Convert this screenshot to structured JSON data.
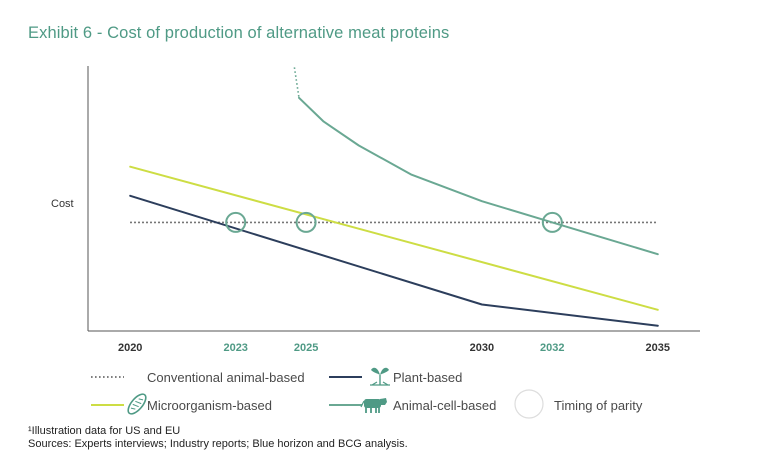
{
  "title": "Exhibit 6 - Cost of production of alternative meat proteins",
  "chart_data": {
    "type": "line",
    "ylabel": "Cost",
    "xlim": [
      2018.8,
      2036.2
    ],
    "ylim": [
      0,
      100
    ],
    "x_ticks": [
      {
        "label": "2020",
        "x": 2020,
        "color": "#333333"
      },
      {
        "label": "2023",
        "x": 2023,
        "color": "#4f9a85"
      },
      {
        "label": "2025",
        "x": 2025,
        "color": "#4f9a85"
      },
      {
        "label": "2030",
        "x": 2030,
        "color": "#333333"
      },
      {
        "label": "2032",
        "x": 2032,
        "color": "#4f9a85"
      },
      {
        "label": "2035",
        "x": 2035,
        "color": "#333333"
      }
    ],
    "series": [
      {
        "name": "Conventional animal-based",
        "color": "#555555",
        "style": "dotted",
        "x": [
          2020,
          2035
        ],
        "y": [
          41,
          41
        ]
      },
      {
        "name": "Plant-based",
        "color": "#2c3e5c",
        "style": "solid",
        "x": [
          2020,
          2030,
          2035
        ],
        "y": [
          51,
          10,
          2
        ]
      },
      {
        "name": "Microorganism-based",
        "color": "#cddd44",
        "style": "solid",
        "x": [
          2020,
          2035
        ],
        "y": [
          62,
          8
        ]
      },
      {
        "name": "Animal-cell-based",
        "color": "#6aa893",
        "style": "solid",
        "x": [
          2024.8,
          2025.5,
          2026.5,
          2028,
          2030,
          2032,
          2033.5,
          2035
        ],
        "y": [
          88,
          79,
          70,
          59,
          49,
          41,
          35,
          29
        ]
      },
      {
        "name": "Animal-cell-based (projected)",
        "color": "#6aa893",
        "style": "dotted",
        "x": [
          2024.65,
          2024.8
        ],
        "y": [
          101,
          88
        ]
      }
    ],
    "parity_points": [
      {
        "x": 2023,
        "y": 41
      },
      {
        "x": 2025,
        "y": 41
      },
      {
        "x": 2032,
        "y": 41
      }
    ]
  },
  "legend": {
    "conventional": "Conventional animal-based",
    "plant": "Plant-based",
    "microorganism": "Microorganism-based",
    "animal_cell": "Animal-cell-based",
    "parity": "Timing of parity"
  },
  "colors": {
    "conventional": "#555555",
    "plant": "#2c3e5c",
    "microorganism": "#cddd44",
    "animal_cell": "#6aa893",
    "parity": "#6aa893",
    "axis": "#555555"
  },
  "footnotes": {
    "note": "¹Illustration data for US and EU",
    "sources": "Sources: Experts interviews; Industry reports; Blue horizon and BCG analysis."
  }
}
